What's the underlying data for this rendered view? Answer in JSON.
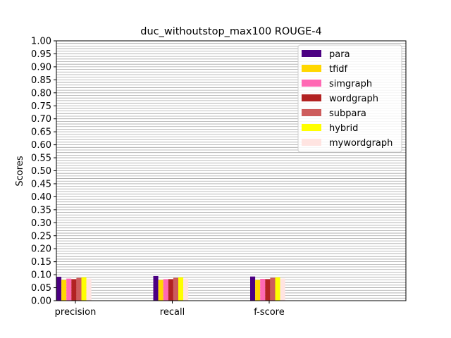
{
  "chart_data": {
    "type": "bar",
    "title": "duc_withoutstop_max100 ROUGE-4",
    "xlabel": "",
    "ylabel": "Scores",
    "ylim": [
      0,
      1
    ],
    "yticks": [
      "0.00",
      "0.05",
      "0.10",
      "0.15",
      "0.20",
      "0.25",
      "0.30",
      "0.35",
      "0.40",
      "0.45",
      "0.50",
      "0.55",
      "0.60",
      "0.65",
      "0.70",
      "0.75",
      "0.80",
      "0.85",
      "0.90",
      "0.95",
      "1.00"
    ],
    "grid": true,
    "legend_position": "top-right",
    "categories": [
      "precision",
      "recall",
      "f-score"
    ],
    "series": [
      {
        "name": "para",
        "color": "#4b0082",
        "values": [
          0.092,
          0.095,
          0.093
        ]
      },
      {
        "name": "tfidf",
        "color": "#ffd700",
        "values": [
          0.08,
          0.08,
          0.08
        ]
      },
      {
        "name": "simgraph",
        "color": "#ff69b4",
        "values": [
          0.085,
          0.083,
          0.084
        ]
      },
      {
        "name": "wordgraph",
        "color": "#b22222",
        "values": [
          0.083,
          0.083,
          0.083
        ]
      },
      {
        "name": "subpara",
        "color": "#cd5c5c",
        "values": [
          0.088,
          0.088,
          0.088
        ]
      },
      {
        "name": "hybrid",
        "color": "#ffff00",
        "values": [
          0.09,
          0.09,
          0.09
        ]
      },
      {
        "name": "mywordgraph",
        "color": "#ffe4e1",
        "values": [
          0.085,
          0.085,
          0.085
        ]
      }
    ]
  }
}
